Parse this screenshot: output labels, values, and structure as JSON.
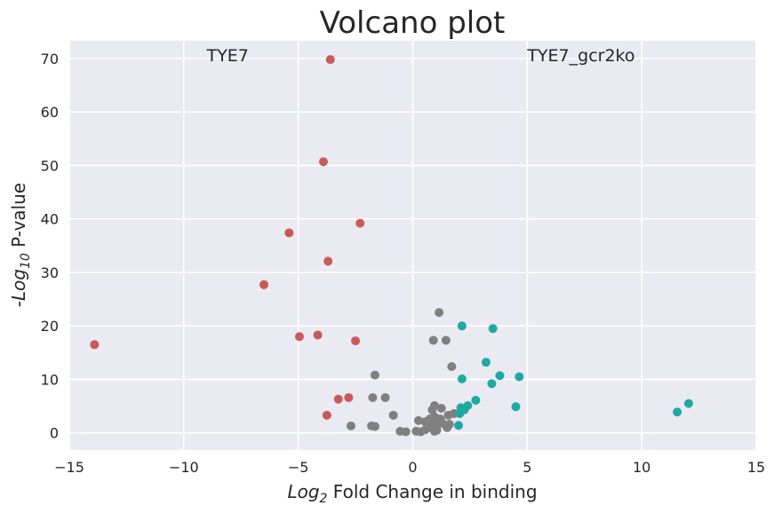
{
  "chart_data": {
    "type": "scatter",
    "title": "Volcano plot",
    "xlabel": {
      "prefix": "Log",
      "sub": "2",
      "rest": " Fold Change in binding"
    },
    "ylabel": {
      "prefix": "-Log",
      "sub": "10",
      "rest": " P-value"
    },
    "xlim": [
      -15,
      15
    ],
    "ylim": [
      -3.2,
      73.3
    ],
    "xticks": [
      -15,
      -10,
      -5,
      0,
      5,
      10,
      15
    ],
    "yticks": [
      0,
      10,
      20,
      30,
      40,
      50,
      60,
      70
    ],
    "xtick_labels": [
      "−15",
      "−10",
      "−5",
      "0",
      "5",
      "10",
      "15"
    ],
    "ytick_labels": [
      "0",
      "10",
      "20",
      "30",
      "40",
      "50",
      "60",
      "70"
    ],
    "grid": true,
    "background": "#eaeaf2",
    "annotations": [
      {
        "text": "TYE7",
        "x": -9.0,
        "y": 69.5
      },
      {
        "text": "TYE7_gcr2ko",
        "x": 5.0,
        "y": 69.5
      }
    ],
    "series": [
      {
        "color": "#c85a5a",
        "points": [
          [
            -13.9,
            16.5
          ],
          [
            -3.6,
            69.8
          ],
          [
            -3.9,
            50.7
          ],
          [
            -2.3,
            39.2
          ],
          [
            -5.4,
            37.4
          ],
          [
            -3.7,
            32.1
          ],
          [
            -6.5,
            27.7
          ],
          [
            -4.95,
            18.0
          ],
          [
            -4.15,
            18.3
          ],
          [
            -2.5,
            17.2
          ],
          [
            -2.8,
            6.6
          ],
          [
            -3.25,
            6.3
          ],
          [
            -3.75,
            3.3
          ]
        ]
      },
      {
        "color": "#808080",
        "points": [
          [
            1.15,
            22.5
          ],
          [
            0.9,
            17.3
          ],
          [
            1.45,
            17.3
          ],
          [
            1.7,
            12.4
          ],
          [
            -1.65,
            10.8
          ],
          [
            -1.75,
            6.6
          ],
          [
            -1.2,
            6.6
          ],
          [
            0.95,
            5.1
          ],
          [
            1.25,
            4.6
          ],
          [
            0.85,
            4.3
          ],
          [
            -0.85,
            3.3
          ],
          [
            1.8,
            3.6
          ],
          [
            1.55,
            3.3
          ],
          [
            0.95,
            3.0
          ],
          [
            0.75,
            2.6
          ],
          [
            1.2,
            2.6
          ],
          [
            0.25,
            2.3
          ],
          [
            0.55,
            2.1
          ],
          [
            0.95,
            2.0
          ],
          [
            1.3,
            1.8
          ],
          [
            1.6,
            1.6
          ],
          [
            0.65,
            1.4
          ],
          [
            1.05,
            1.3
          ],
          [
            -2.7,
            1.3
          ],
          [
            -1.8,
            1.3
          ],
          [
            -1.65,
            1.2
          ],
          [
            1.5,
            1.0
          ],
          [
            0.85,
            0.9
          ],
          [
            0.55,
            0.6
          ],
          [
            1.05,
            0.5
          ],
          [
            -0.55,
            0.3
          ],
          [
            -0.3,
            0.2
          ],
          [
            0.15,
            0.3
          ],
          [
            0.35,
            0.2
          ],
          [
            0.95,
            0.3
          ]
        ]
      },
      {
        "color": "#20a9a3",
        "points": [
          [
            2.15,
            20.0
          ],
          [
            3.5,
            19.5
          ],
          [
            3.2,
            13.2
          ],
          [
            3.8,
            10.7
          ],
          [
            4.65,
            10.5
          ],
          [
            2.15,
            10.1
          ],
          [
            3.45,
            9.2
          ],
          [
            2.75,
            6.1
          ],
          [
            2.4,
            5.1
          ],
          [
            4.5,
            4.9
          ],
          [
            2.1,
            4.7
          ],
          [
            2.25,
            4.3
          ],
          [
            2.05,
            3.6
          ],
          [
            2.0,
            1.4
          ],
          [
            11.55,
            3.9
          ],
          [
            12.05,
            5.5
          ]
        ]
      }
    ]
  }
}
